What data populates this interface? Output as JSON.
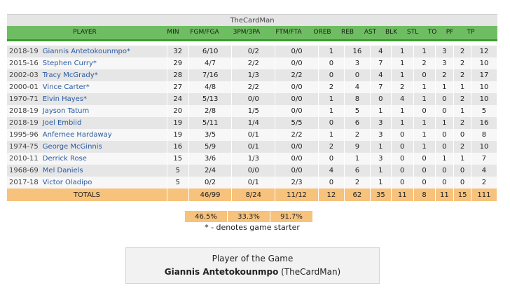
{
  "team": {
    "name": "TheCardMan"
  },
  "headers": {
    "player": "PLAYER",
    "min": "MIN",
    "fg": "FGM/FGA",
    "tp3": "3PM/3PA",
    "ft": "FTM/FTA",
    "oreb": "OREB",
    "reb": "REB",
    "ast": "AST",
    "blk": "BLK",
    "stl": "STL",
    "to": "TO",
    "pf": "PF",
    "pts": "TP"
  },
  "rows": [
    {
      "season": "2018-19",
      "player": "Giannis Antetokounmpo*",
      "min": "32",
      "fg": "6/10",
      "tp3": "0/2",
      "ft": "0/0",
      "oreb": "1",
      "reb": "16",
      "ast": "4",
      "blk": "1",
      "stl": "1",
      "to": "3",
      "pf": "2",
      "pts": "12"
    },
    {
      "season": "2015-16",
      "player": "Stephen Curry*",
      "min": "29",
      "fg": "4/7",
      "tp3": "2/2",
      "ft": "0/0",
      "oreb": "0",
      "reb": "3",
      "ast": "7",
      "blk": "1",
      "stl": "2",
      "to": "3",
      "pf": "2",
      "pts": "10"
    },
    {
      "season": "2002-03",
      "player": "Tracy McGrady*",
      "min": "28",
      "fg": "7/16",
      "tp3": "1/3",
      "ft": "2/2",
      "oreb": "0",
      "reb": "0",
      "ast": "4",
      "blk": "1",
      "stl": "0",
      "to": "2",
      "pf": "2",
      "pts": "17"
    },
    {
      "season": "2000-01",
      "player": "Vince Carter*",
      "min": "27",
      "fg": "4/8",
      "tp3": "2/2",
      "ft": "0/0",
      "oreb": "2",
      "reb": "4",
      "ast": "7",
      "blk": "2",
      "stl": "1",
      "to": "1",
      "pf": "1",
      "pts": "10"
    },
    {
      "season": "1970-71",
      "player": "Elvin Hayes*",
      "min": "24",
      "fg": "5/13",
      "tp3": "0/0",
      "ft": "0/0",
      "oreb": "1",
      "reb": "8",
      "ast": "0",
      "blk": "4",
      "stl": "1",
      "to": "0",
      "pf": "2",
      "pts": "10"
    },
    {
      "season": "2018-19",
      "player": "Jayson Tatum",
      "min": "20",
      "fg": "2/8",
      "tp3": "1/5",
      "ft": "0/0",
      "oreb": "1",
      "reb": "5",
      "ast": "1",
      "blk": "1",
      "stl": "0",
      "to": "0",
      "pf": "1",
      "pts": "5"
    },
    {
      "season": "2018-19",
      "player": "Joel Embiid",
      "min": "19",
      "fg": "5/11",
      "tp3": "1/4",
      "ft": "5/5",
      "oreb": "0",
      "reb": "6",
      "ast": "3",
      "blk": "1",
      "stl": "1",
      "to": "1",
      "pf": "2",
      "pts": "16"
    },
    {
      "season": "1995-96",
      "player": "Anfernee Hardaway",
      "min": "19",
      "fg": "3/5",
      "tp3": "0/1",
      "ft": "2/2",
      "oreb": "1",
      "reb": "2",
      "ast": "3",
      "blk": "0",
      "stl": "1",
      "to": "0",
      "pf": "0",
      "pts": "8"
    },
    {
      "season": "1974-75",
      "player": "George McGinnis",
      "min": "16",
      "fg": "5/9",
      "tp3": "0/1",
      "ft": "0/0",
      "oreb": "2",
      "reb": "9",
      "ast": "1",
      "blk": "0",
      "stl": "1",
      "to": "0",
      "pf": "2",
      "pts": "10"
    },
    {
      "season": "2010-11",
      "player": "Derrick Rose",
      "min": "15",
      "fg": "3/6",
      "tp3": "1/3",
      "ft": "0/0",
      "oreb": "0",
      "reb": "1",
      "ast": "3",
      "blk": "0",
      "stl": "0",
      "to": "1",
      "pf": "1",
      "pts": "7"
    },
    {
      "season": "1968-69",
      "player": "Mel Daniels",
      "min": "5",
      "fg": "2/4",
      "tp3": "0/0",
      "ft": "0/0",
      "oreb": "4",
      "reb": "6",
      "ast": "1",
      "blk": "0",
      "stl": "0",
      "to": "0",
      "pf": "0",
      "pts": "4"
    },
    {
      "season": "2017-18",
      "player": "Victor Oladipo",
      "min": "5",
      "fg": "0/2",
      "tp3": "0/1",
      "ft": "2/3",
      "oreb": "0",
      "reb": "2",
      "ast": "1",
      "blk": "0",
      "stl": "0",
      "to": "0",
      "pf": "0",
      "pts": "2"
    }
  ],
  "totals": {
    "label": "TOTALS",
    "min": "",
    "fg": "46/99",
    "tp3": "8/24",
    "ft": "11/12",
    "oreb": "12",
    "reb": "62",
    "ast": "35",
    "blk": "11",
    "stl": "8",
    "to": "11",
    "pf": "15",
    "pts": "111"
  },
  "percentages": {
    "fg": "46.5%",
    "tp3": "33.3%",
    "ft": "91.7%"
  },
  "footnote": "* - denotes game starter",
  "player_of_game": {
    "title": "Player of the Game",
    "name": "Giannis Antetokounmpo",
    "team": "(TheCardMan)"
  }
}
